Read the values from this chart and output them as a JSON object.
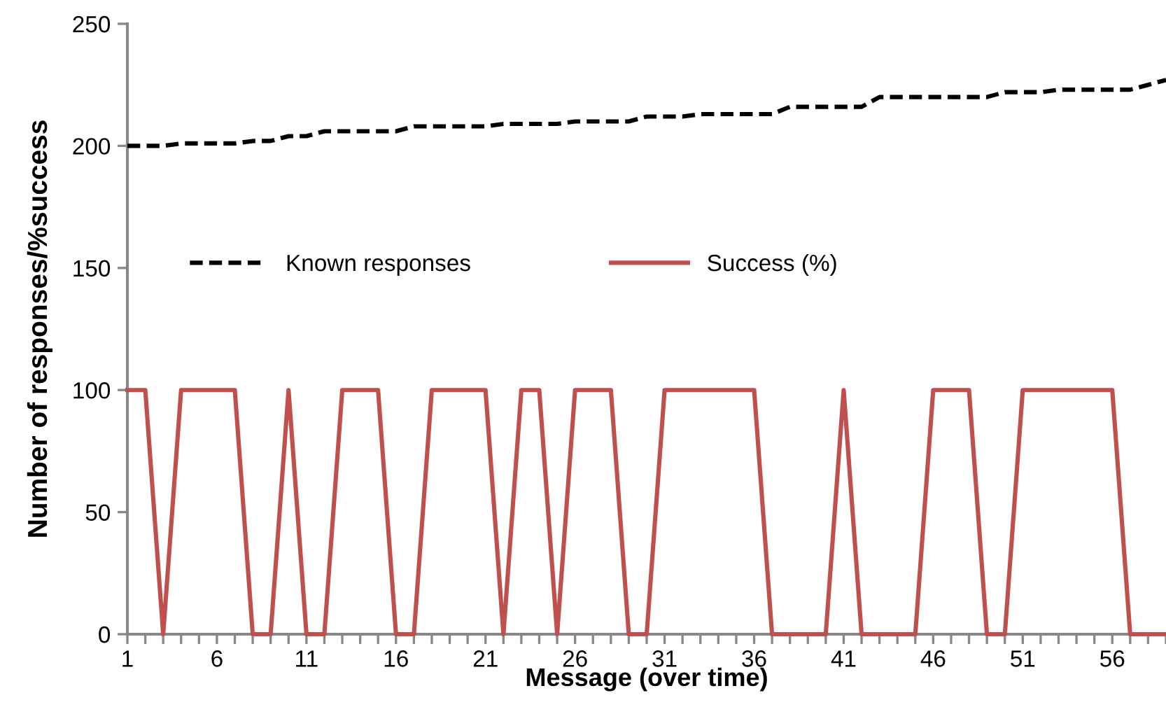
{
  "chart_data": {
    "type": "line",
    "xlabel": "Message (over time)",
    "ylabel": "Number of responses/%success",
    "categories": [
      "1",
      null,
      null,
      null,
      null,
      "6",
      null,
      null,
      null,
      null,
      "11",
      null,
      null,
      null,
      null,
      "16",
      null,
      null,
      null,
      null,
      "21",
      null,
      null,
      null,
      null,
      "26",
      null,
      null,
      null,
      null,
      "31",
      null,
      null,
      null,
      null,
      "36",
      null,
      null,
      null,
      null,
      "41",
      null,
      null,
      null,
      null,
      "46",
      null,
      null,
      null,
      null,
      "51",
      null,
      null,
      null,
      null,
      "56",
      null,
      null,
      null
    ],
    "series": [
      {
        "name": "Known responses",
        "color": "#000000",
        "line_style": "dashed",
        "values": [
          200,
          200,
          200,
          201,
          201,
          201,
          201,
          202,
          202,
          204,
          204,
          206,
          206,
          206,
          206,
          206,
          208,
          208,
          208,
          208,
          208,
          209,
          209,
          209,
          209,
          210,
          210,
          210,
          210,
          212,
          212,
          212,
          213,
          213,
          213,
          213,
          213,
          216,
          216,
          216,
          216,
          216,
          220,
          220,
          220,
          220,
          220,
          220,
          220,
          222,
          222,
          222,
          223,
          223,
          223,
          223,
          223,
          225,
          227
        ]
      },
      {
        "name": "Success (%)",
        "color": "#c0504d",
        "line_style": "solid",
        "values": [
          100,
          100,
          0,
          100,
          100,
          100,
          100,
          0,
          0,
          100,
          0,
          0,
          100,
          100,
          100,
          0,
          0,
          100,
          100,
          100,
          100,
          0,
          100,
          100,
          0,
          100,
          100,
          100,
          0,
          0,
          100,
          100,
          100,
          100,
          100,
          100,
          0,
          0,
          0,
          0,
          100,
          0,
          0,
          0,
          0,
          100,
          100,
          100,
          0,
          0,
          100,
          100,
          100,
          100,
          100,
          100,
          0,
          0,
          0
        ]
      }
    ],
    "ylim": [
      0,
      250
    ],
    "yticks": [
      0,
      50,
      100,
      150,
      200,
      250
    ],
    "grid": false,
    "legend": "left",
    "marker": "none"
  }
}
